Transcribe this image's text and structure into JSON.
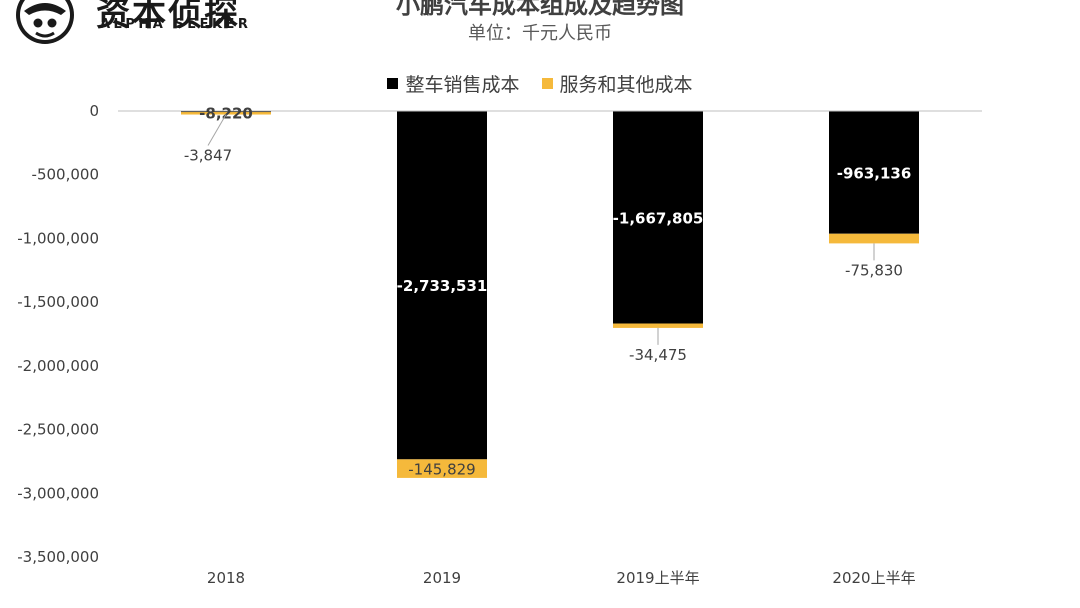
{
  "logo": {
    "name": "资本侦探",
    "sub": "ALPHA SEEKER"
  },
  "chart_data": {
    "type": "bar",
    "stacked": true,
    "title": "小鹏汽车成本组成及趋势图",
    "subtitle": "单位：千元人民币",
    "categories": [
      "2018",
      "2019",
      "2019上半年",
      "2020上半年"
    ],
    "series": [
      {
        "name": "整车销售成本",
        "color": "#000000",
        "values": [
          -8220,
          -2733531,
          -1667805,
          -963136
        ]
      },
      {
        "name": "服务和其他成本",
        "color": "#f5b93b",
        "values": [
          -3847,
          -145829,
          -34475,
          -75830
        ]
      }
    ],
    "data_labels": [
      [
        "-8,220",
        "-2,733,531",
        "-1,667,805",
        "-963,136"
      ],
      [
        "-3,847",
        "-145,829",
        "-34,475",
        "-75,830"
      ]
    ],
    "yticks": [
      0,
      -500000,
      -1000000,
      -1500000,
      -2000000,
      -2500000,
      -3000000,
      -3500000
    ],
    "ytick_labels": [
      "0",
      "-500,000",
      "-1,000,000",
      "-1,500,000",
      "-2,000,000",
      "-2,500,000",
      "-3,000,000",
      "-3,500,000"
    ],
    "ylim": [
      -3500000,
      0
    ],
    "legend_position": "top",
    "grid": false
  }
}
